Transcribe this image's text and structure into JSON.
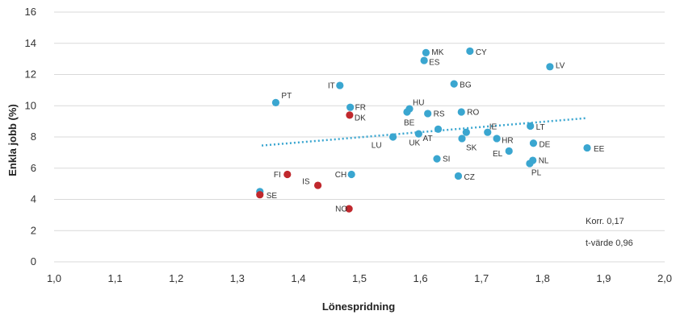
{
  "chart_data": {
    "type": "scatter",
    "xlabel": "Lönespridning",
    "ylabel": "Enkla jobb (%)",
    "xlim": [
      1.0,
      2.0
    ],
    "ylim": [
      0,
      16
    ],
    "x_ticks": [
      "1,0",
      "1,1",
      "1,2",
      "1,3",
      "1,4",
      "1,5",
      "1,6",
      "1,7",
      "1,8",
      "1,9",
      "2,0"
    ],
    "y_ticks": [
      "0",
      "2",
      "4",
      "6",
      "8",
      "10",
      "12",
      "14",
      "16"
    ],
    "grid": "horizontal",
    "colors": {
      "blue": "#3aa6d0",
      "red": "#c0282d",
      "trend": "#3aa6d0",
      "grid": "#d9d9d9"
    },
    "points": [
      {
        "label": "MK",
        "x": 1.609,
        "y": 13.4,
        "color": "blue"
      },
      {
        "label": "CY",
        "x": 1.681,
        "y": 13.5,
        "color": "blue"
      },
      {
        "label": "ES",
        "x": 1.606,
        "y": 12.9,
        "color": "blue"
      },
      {
        "label": "LV",
        "x": 1.812,
        "y": 12.5,
        "color": "blue"
      },
      {
        "label": "IT",
        "x": 1.468,
        "y": 11.3,
        "color": "blue"
      },
      {
        "label": "BG",
        "x": 1.655,
        "y": 11.4,
        "color": "blue"
      },
      {
        "label": "PT",
        "x": 1.363,
        "y": 10.2,
        "color": "blue"
      },
      {
        "label": "FR",
        "x": 1.485,
        "y": 9.9,
        "color": "blue"
      },
      {
        "label": "HU",
        "x": 1.582,
        "y": 9.8,
        "color": "blue"
      },
      {
        "label": "BE",
        "x": 1.578,
        "y": 9.6,
        "color": "blue"
      },
      {
        "label": "RS",
        "x": 1.612,
        "y": 9.5,
        "color": "blue"
      },
      {
        "label": "RO",
        "x": 1.667,
        "y": 9.6,
        "color": "blue"
      },
      {
        "label": "DK",
        "x": 1.484,
        "y": 9.4,
        "color": "red"
      },
      {
        "label": "IE",
        "x": 1.71,
        "y": 8.3,
        "color": "blue"
      },
      {
        "label": "LT",
        "x": 1.78,
        "y": 8.7,
        "color": "blue"
      },
      {
        "label": "LU",
        "x": 1.555,
        "y": 8.0,
        "color": "blue"
      },
      {
        "label": "UK",
        "x": 1.597,
        "y": 8.2,
        "color": "blue"
      },
      {
        "label": "AT",
        "x": 1.629,
        "y": 8.5,
        "color": "blue"
      },
      {
        "label": "SK",
        "x": 1.668,
        "y": 7.9,
        "color": "blue"
      },
      {
        "label": "HR",
        "x": 1.725,
        "y": 7.9,
        "color": "blue"
      },
      {
        "label": "DE",
        "x": 1.785,
        "y": 7.6,
        "color": "blue"
      },
      {
        "label": "EL",
        "x": 1.745,
        "y": 7.1,
        "color": "blue"
      },
      {
        "label": "EE",
        "x": 1.873,
        "y": 7.3,
        "color": "blue"
      },
      {
        "label": "SI",
        "x": 1.627,
        "y": 6.6,
        "color": "blue"
      },
      {
        "label": "NL",
        "x": 1.784,
        "y": 6.5,
        "color": "blue"
      },
      {
        "label": "PL",
        "x": 1.779,
        "y": 6.3,
        "color": "blue"
      },
      {
        "label": "FI",
        "x": 1.382,
        "y": 5.6,
        "color": "red"
      },
      {
        "label": "CH",
        "x": 1.487,
        "y": 5.6,
        "color": "blue"
      },
      {
        "label": "CZ",
        "x": 1.662,
        "y": 5.5,
        "color": "blue"
      },
      {
        "label": "IS",
        "x": 1.432,
        "y": 4.9,
        "color": "red"
      },
      {
        "label": "",
        "x": 1.337,
        "y": 4.5,
        "color": "blue"
      },
      {
        "label": "SE",
        "x": 1.337,
        "y": 4.3,
        "color": "red"
      },
      {
        "label": "NO",
        "x": 1.483,
        "y": 3.4,
        "color": "red"
      },
      {
        "label": "",
        "x": 1.675,
        "y": 8.3,
        "color": "blue"
      }
    ],
    "trendline": {
      "x": [
        1.34,
        1.87
      ],
      "y": [
        7.45,
        9.2
      ],
      "style": "dotted"
    },
    "annotations": [
      "Korr. 0,17",
      "t-värde 0,96"
    ]
  }
}
